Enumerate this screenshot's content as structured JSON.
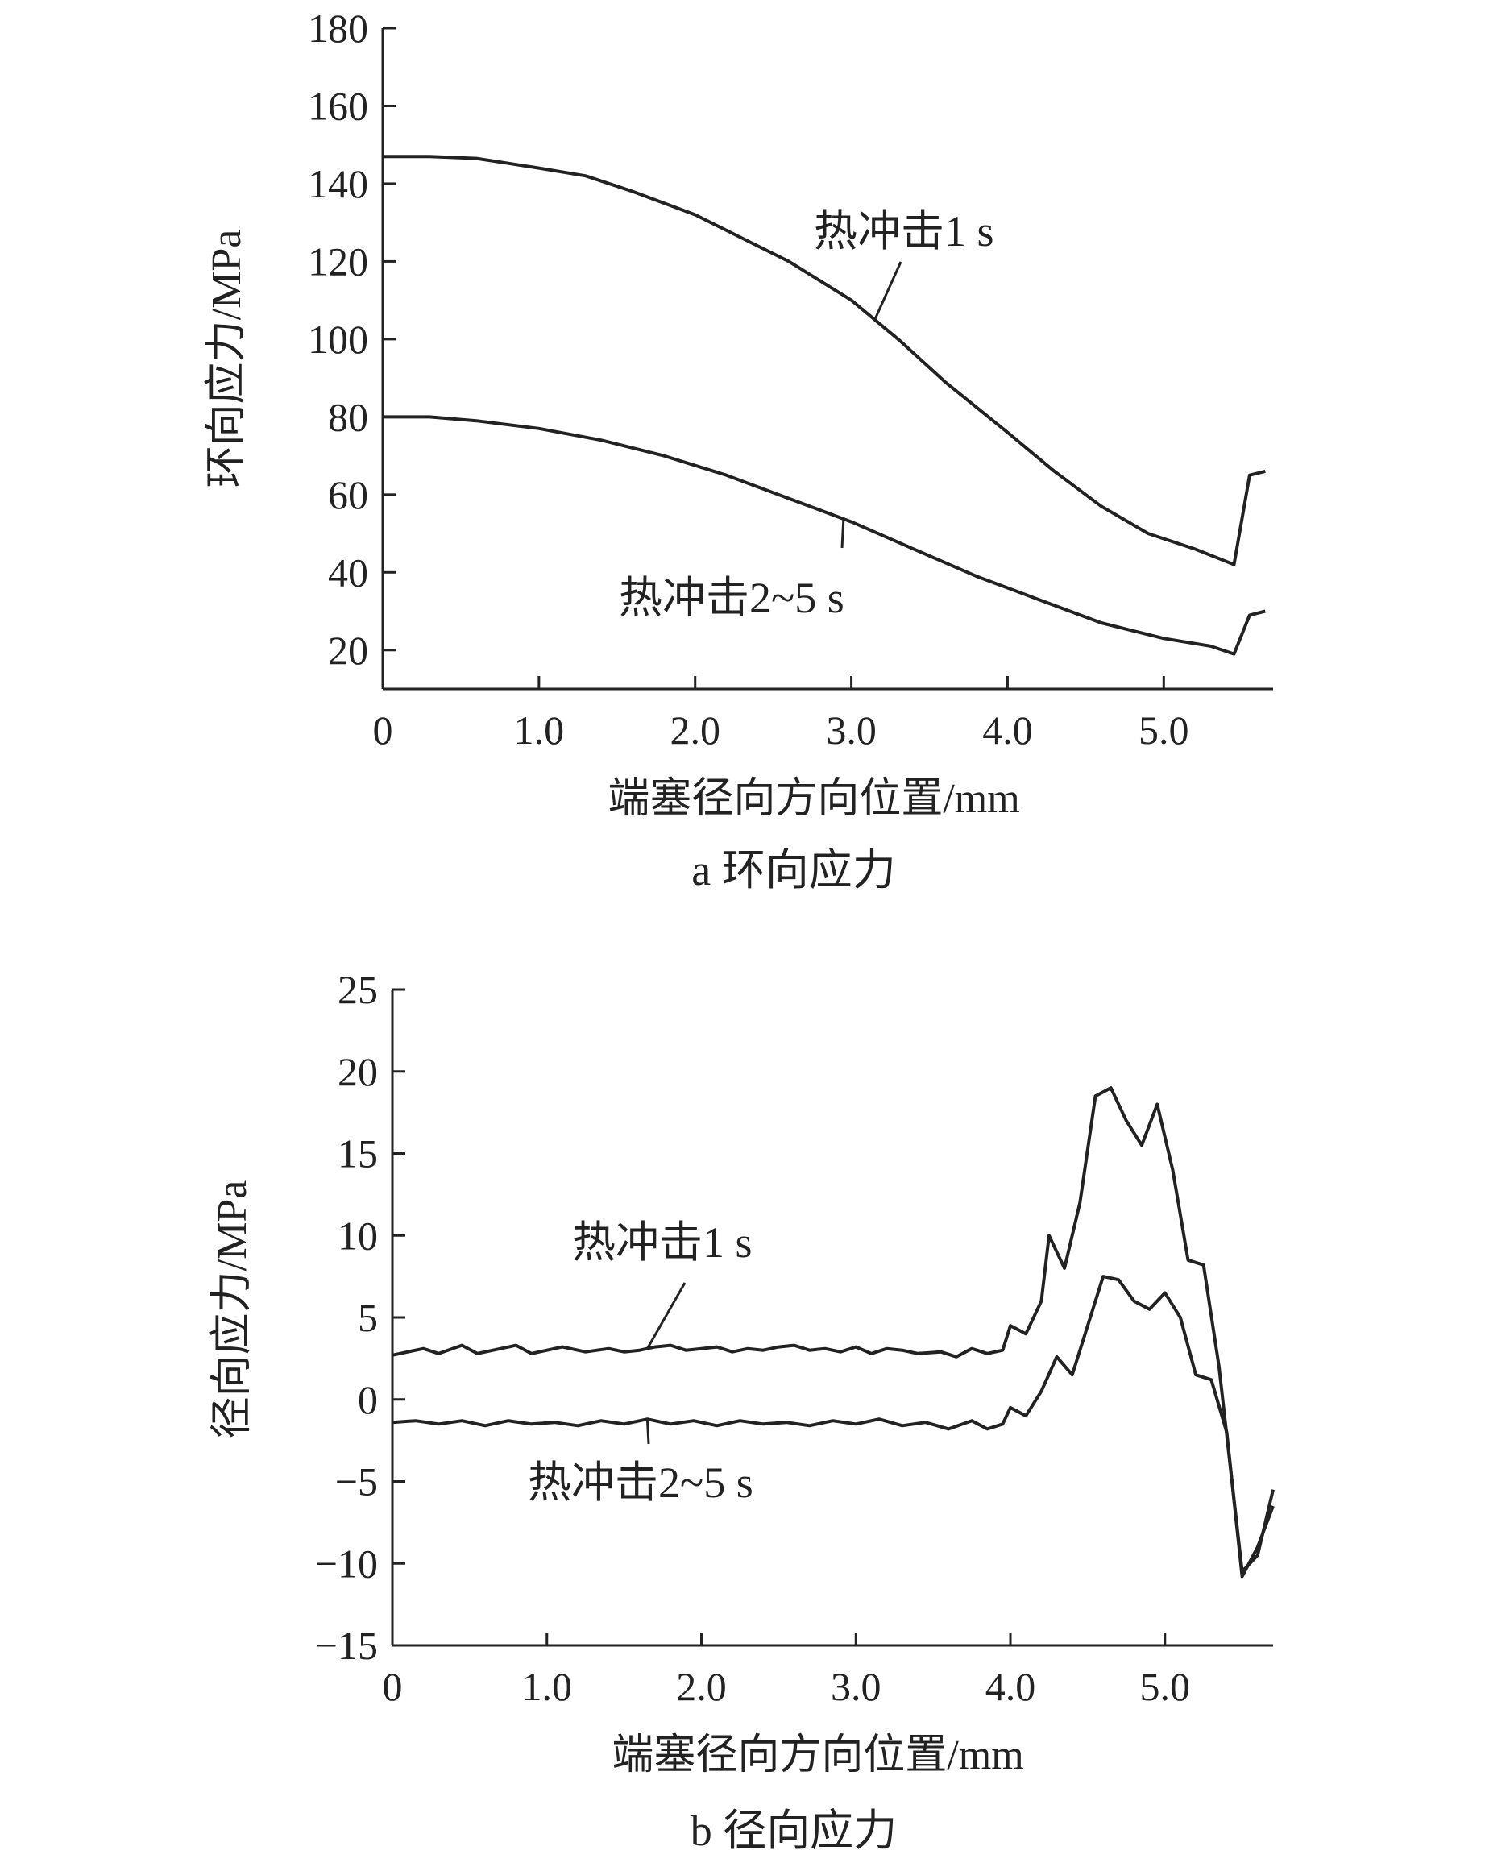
{
  "chart_data": [
    {
      "type": "line",
      "caption": "a 环向应力",
      "xlabel": "端塞径向方向位置/mm",
      "ylabel": "环向应力/MPa",
      "xlim": [
        0,
        5.7
      ],
      "ylim": [
        10,
        180
      ],
      "xticks": [
        0,
        1.0,
        2.0,
        3.0,
        4.0,
        5.0
      ],
      "xtick_labels": [
        "0",
        "1.0",
        "2.0",
        "3.0",
        "4.0",
        "5.0"
      ],
      "yticks": [
        20,
        40,
        60,
        80,
        100,
        120,
        140,
        160,
        180
      ],
      "ytick_labels": [
        "20",
        "40",
        "60",
        "80",
        "100",
        "120",
        "140",
        "160",
        "180"
      ],
      "grid": false,
      "series": [
        {
          "name": "热冲击1 s",
          "points": [
            [
              0,
              147
            ],
            [
              0.3,
              147
            ],
            [
              0.6,
              146.5
            ],
            [
              1.0,
              144
            ],
            [
              1.3,
              142
            ],
            [
              1.6,
              138
            ],
            [
              2.0,
              132
            ],
            [
              2.3,
              126
            ],
            [
              2.6,
              120
            ],
            [
              3.0,
              110
            ],
            [
              3.3,
              100
            ],
            [
              3.6,
              89
            ],
            [
              4.0,
              76
            ],
            [
              4.3,
              66
            ],
            [
              4.6,
              57
            ],
            [
              4.9,
              50
            ],
            [
              5.2,
              46
            ],
            [
              5.45,
              42
            ],
            [
              5.55,
              65
            ],
            [
              5.65,
              66
            ]
          ]
        },
        {
          "name": "热冲击2~5 s",
          "points": [
            [
              0,
              80
            ],
            [
              0.3,
              80
            ],
            [
              0.6,
              79
            ],
            [
              1.0,
              77
            ],
            [
              1.4,
              74
            ],
            [
              1.8,
              70
            ],
            [
              2.2,
              65
            ],
            [
              2.6,
              59
            ],
            [
              3.0,
              53
            ],
            [
              3.4,
              46
            ],
            [
              3.8,
              39
            ],
            [
              4.2,
              33
            ],
            [
              4.6,
              27
            ],
            [
              5.0,
              23
            ],
            [
              5.3,
              21
            ],
            [
              5.45,
              19
            ],
            [
              5.55,
              29
            ],
            [
              5.65,
              30
            ]
          ]
        }
      ],
      "annotations": [
        {
          "text": "热冲击1 s",
          "series": 0
        },
        {
          "text": "热冲击2~5 s",
          "series": 1
        }
      ]
    },
    {
      "type": "line",
      "caption": "b 径向应力",
      "xlabel": "端塞径向方向位置/mm",
      "ylabel": "径向应力/MPa",
      "xlim": [
        0,
        5.7
      ],
      "ylim": [
        -15,
        25
      ],
      "xticks": [
        0,
        1.0,
        2.0,
        3.0,
        4.0,
        5.0
      ],
      "xtick_labels": [
        "0",
        "1.0",
        "2.0",
        "3.0",
        "4.0",
        "5.0"
      ],
      "yticks": [
        -15,
        -10,
        -5,
        0,
        5,
        10,
        15,
        20,
        25
      ],
      "ytick_labels": [
        "−15",
        "−10",
        "−5",
        "0",
        "5",
        "10",
        "15",
        "20",
        "25"
      ],
      "grid": false,
      "series": [
        {
          "name": "热冲击1 s",
          "points": [
            [
              0,
              2.7
            ],
            [
              0.1,
              2.9
            ],
            [
              0.2,
              3.1
            ],
            [
              0.3,
              2.8
            ],
            [
              0.45,
              3.3
            ],
            [
              0.55,
              2.8
            ],
            [
              0.7,
              3.1
            ],
            [
              0.8,
              3.3
            ],
            [
              0.9,
              2.8
            ],
            [
              1.0,
              3.0
            ],
            [
              1.1,
              3.2
            ],
            [
              1.25,
              2.9
            ],
            [
              1.4,
              3.1
            ],
            [
              1.5,
              2.9
            ],
            [
              1.6,
              3.0
            ],
            [
              1.7,
              3.2
            ],
            [
              1.8,
              3.3
            ],
            [
              1.9,
              3.0
            ],
            [
              2.0,
              3.1
            ],
            [
              2.1,
              3.2
            ],
            [
              2.2,
              2.9
            ],
            [
              2.3,
              3.1
            ],
            [
              2.4,
              3.0
            ],
            [
              2.5,
              3.2
            ],
            [
              2.6,
              3.3
            ],
            [
              2.7,
              3.0
            ],
            [
              2.8,
              3.1
            ],
            [
              2.9,
              2.9
            ],
            [
              3.0,
              3.2
            ],
            [
              3.1,
              2.8
            ],
            [
              3.2,
              3.1
            ],
            [
              3.3,
              3.0
            ],
            [
              3.4,
              2.8
            ],
            [
              3.55,
              2.9
            ],
            [
              3.65,
              2.6
            ],
            [
              3.75,
              3.1
            ],
            [
              3.85,
              2.8
            ],
            [
              3.95,
              3.0
            ],
            [
              4.0,
              4.5
            ],
            [
              4.1,
              4.0
            ],
            [
              4.2,
              6.0
            ],
            [
              4.25,
              10.0
            ],
            [
              4.35,
              8.0
            ],
            [
              4.45,
              12.0
            ],
            [
              4.55,
              18.5
            ],
            [
              4.65,
              19.0
            ],
            [
              4.75,
              17.0
            ],
            [
              4.85,
              15.5
            ],
            [
              4.95,
              18.0
            ],
            [
              5.05,
              14.0
            ],
            [
              5.15,
              8.5
            ],
            [
              5.25,
              8.2
            ],
            [
              5.35,
              2.0
            ],
            [
              5.5,
              -10.5
            ],
            [
              5.6,
              -9.5
            ],
            [
              5.7,
              -5.5
            ]
          ]
        },
        {
          "name": "热冲击2~5 s",
          "points": [
            [
              0,
              -1.4
            ],
            [
              0.15,
              -1.3
            ],
            [
              0.3,
              -1.5
            ],
            [
              0.45,
              -1.3
            ],
            [
              0.6,
              -1.6
            ],
            [
              0.75,
              -1.3
            ],
            [
              0.9,
              -1.5
            ],
            [
              1.05,
              -1.4
            ],
            [
              1.2,
              -1.6
            ],
            [
              1.35,
              -1.3
            ],
            [
              1.5,
              -1.5
            ],
            [
              1.65,
              -1.2
            ],
            [
              1.8,
              -1.5
            ],
            [
              1.95,
              -1.3
            ],
            [
              2.1,
              -1.6
            ],
            [
              2.25,
              -1.3
            ],
            [
              2.4,
              -1.5
            ],
            [
              2.55,
              -1.4
            ],
            [
              2.7,
              -1.6
            ],
            [
              2.85,
              -1.3
            ],
            [
              3.0,
              -1.5
            ],
            [
              3.15,
              -1.2
            ],
            [
              3.3,
              -1.6
            ],
            [
              3.45,
              -1.4
            ],
            [
              3.6,
              -1.8
            ],
            [
              3.75,
              -1.3
            ],
            [
              3.85,
              -1.8
            ],
            [
              3.95,
              -1.5
            ],
            [
              4.0,
              -0.5
            ],
            [
              4.1,
              -1.0
            ],
            [
              4.2,
              0.5
            ],
            [
              4.3,
              2.6
            ],
            [
              4.4,
              1.5
            ],
            [
              4.5,
              4.5
            ],
            [
              4.6,
              7.5
            ],
            [
              4.7,
              7.3
            ],
            [
              4.8,
              6.0
            ],
            [
              4.9,
              5.5
            ],
            [
              5.0,
              6.5
            ],
            [
              5.1,
              5.0
            ],
            [
              5.2,
              1.5
            ],
            [
              5.3,
              1.2
            ],
            [
              5.4,
              -2.0
            ],
            [
              5.5,
              -10.8
            ],
            [
              5.6,
              -9.0
            ],
            [
              5.7,
              -6.5
            ]
          ]
        }
      ],
      "annotations": [
        {
          "text": "热冲击1 s",
          "series": 0
        },
        {
          "text": "热冲击2~5 s",
          "series": 1
        }
      ]
    }
  ]
}
